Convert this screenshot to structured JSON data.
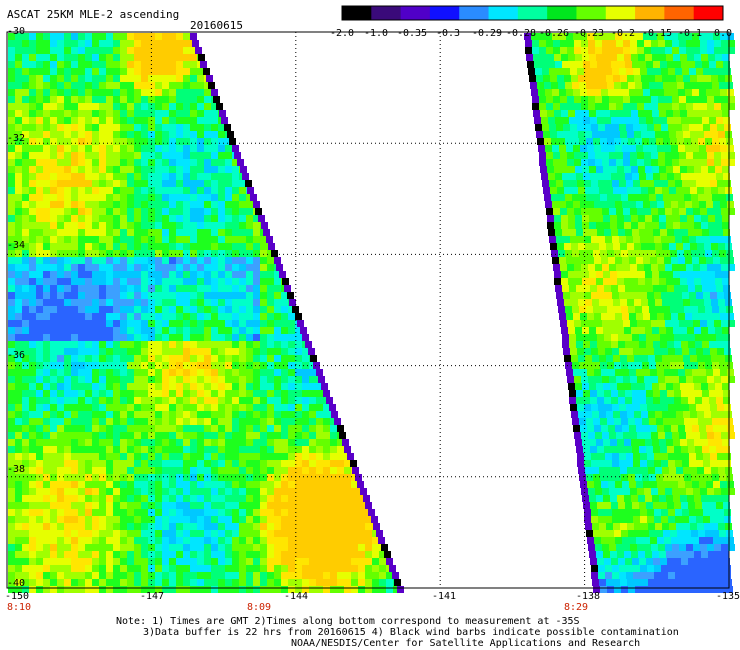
{
  "header": {
    "title": "ASCAT 25KM MLE-2 ascending",
    "date": "20160615"
  },
  "colorbar": {
    "labels": [
      "-2.0",
      "-1.0",
      "-0.35",
      "-0.3",
      "-0.29",
      "-0.28",
      "-0.26",
      "-0.23",
      "-0.2",
      "-0.15",
      "-0.1",
      "0.0"
    ],
    "colors": [
      "#000000",
      "#3a0a7a",
      "#5000c8",
      "#1010ff",
      "#2a8cff",
      "#00e6ff",
      "#00ffa0",
      "#00e61e",
      "#64ff00",
      "#e6ff00",
      "#ffb400",
      "#ff6400",
      "#ff0000"
    ]
  },
  "axes": {
    "lat_labels": [
      "-30",
      "-32",
      "-34",
      "-36",
      "-38",
      "-40"
    ],
    "lon_labels": [
      "-150",
      "-147",
      "-144",
      "-141",
      "-138",
      "-135"
    ]
  },
  "time_labels": [
    "8:10",
    "8:09",
    "8:29"
  ],
  "notes": [
    "Note: 1) Times are GMT 2)Times along bottom correspond to measurement at -35S",
    "3)Data buffer is 22 hrs from 20160615 4) Black wind barbs indicate possible contamination",
    "NOAA/NESDIS/Center for Satellite Applications and Research"
  ],
  "chart_data": {
    "type": "heatmap",
    "title": "ASCAT 25KM MLE-2 ascending",
    "date": "20160615",
    "variable": "MLE-2",
    "lat_range": [
      -40,
      -30
    ],
    "lon_range": [
      -150,
      -135
    ],
    "grid": "dotted every 3 deg lon, 2 deg lat",
    "color_scale": [
      -2.0,
      -1.0,
      -0.35,
      -0.3,
      -0.29,
      -0.28,
      -0.26,
      -0.23,
      -0.2,
      -0.15,
      -0.1,
      0.0
    ],
    "swaths": [
      {
        "pass_time": "8:10",
        "west_edge_lon": -150,
        "east_edge_lon_at_lat_-30": -146.2,
        "east_edge_lon_at_lat_-40": -142.1,
        "dominant_range": [
          -0.29,
          -0.15
        ],
        "max_region": {
          "lat": [
            -39.5,
            -37.5
          ],
          "lon": [
            -144.5,
            -143.0
          ],
          "value_approx": -0.15
        }
      },
      {
        "pass_time": "8:29",
        "west_edge_lon": -138.5,
        "east_edge_lon": -135,
        "dominant_range": [
          -0.3,
          -0.2
        ],
        "min_region": {
          "lat": [
            -40,
            -39
          ],
          "lon": [
            -137,
            -135
          ],
          "value_approx": -0.35
        }
      }
    ]
  }
}
